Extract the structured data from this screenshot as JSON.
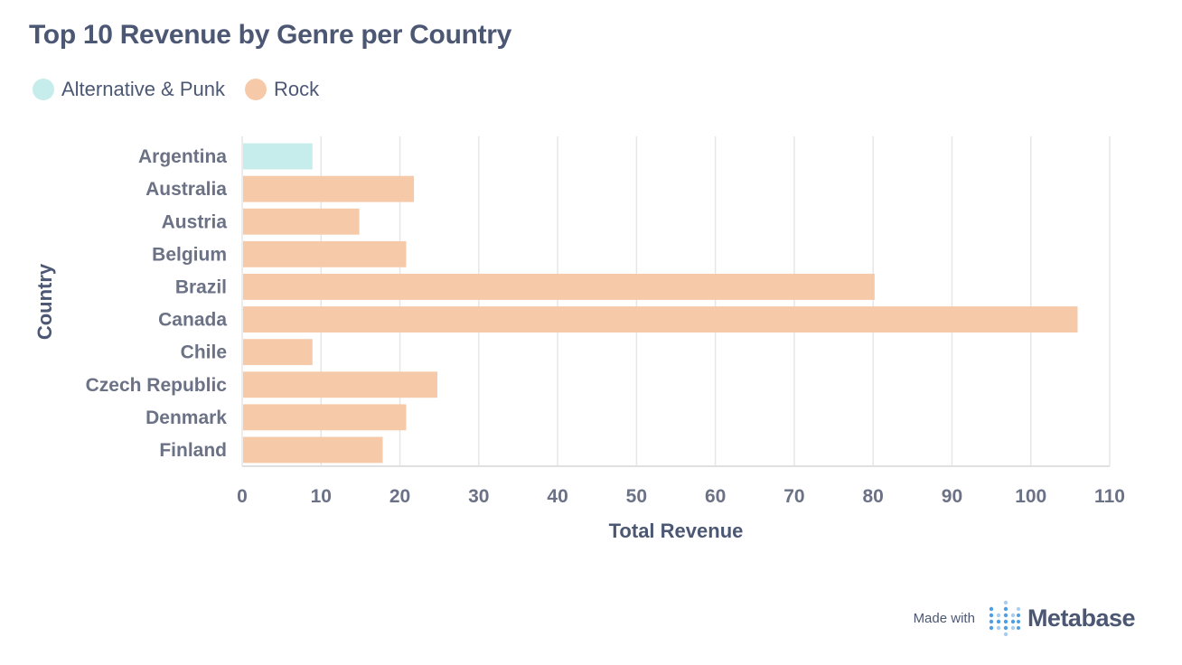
{
  "colors": {
    "alternative_punk": "#c6eceb",
    "rock": "#f6c9a8",
    "grid": "#e6e6e6",
    "brand_blue": "#509ee3"
  },
  "chart_data": {
    "type": "bar",
    "orientation": "horizontal",
    "title": "Top 10 Revenue by Genre per Country",
    "xlabel": "Total Revenue",
    "ylabel": "Country",
    "xlim": [
      0,
      110
    ],
    "xticks": [
      0,
      10,
      20,
      30,
      40,
      50,
      60,
      70,
      80,
      90,
      100,
      110
    ],
    "grid": true,
    "legend_position": "top-left",
    "legend": [
      {
        "name": "Alternative & Punk",
        "color": "#c6eceb"
      },
      {
        "name": "Rock",
        "color": "#f6c9a8"
      }
    ],
    "categories": [
      "Argentina",
      "Australia",
      "Austria",
      "Belgium",
      "Brazil",
      "Canada",
      "Chile",
      "Czech Republic",
      "Denmark",
      "Finland"
    ],
    "values": [
      8.91,
      21.78,
      14.85,
      20.79,
      80.19,
      105.93,
      8.91,
      24.75,
      20.79,
      17.82
    ],
    "genres": [
      "Alternative & Punk",
      "Rock",
      "Rock",
      "Rock",
      "Rock",
      "Rock",
      "Rock",
      "Rock",
      "Rock",
      "Rock"
    ]
  },
  "footer": {
    "made_with": "Made with",
    "brand": "Metabase",
    "brand_icon": "metabase-logo-icon"
  }
}
